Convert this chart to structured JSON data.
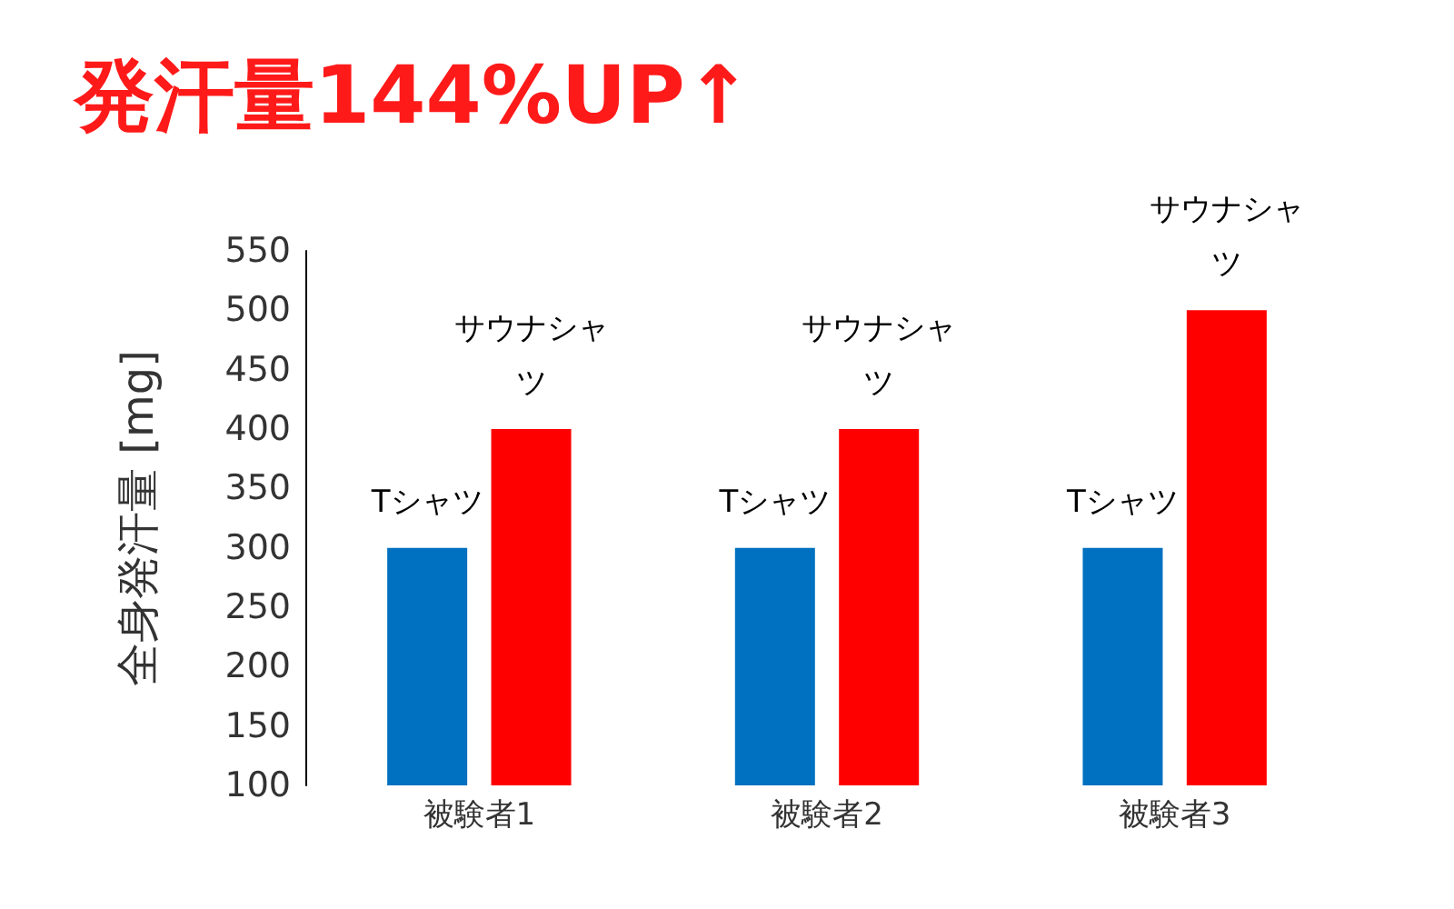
{
  "chart_data": {
    "type": "bar",
    "title": "発汗量144%UP↑",
    "ylabel": "全身発汗量 [mg]",
    "categories": [
      "被験者1",
      "被験者2",
      "被験者3"
    ],
    "series": [
      {
        "name": "Tシャツ",
        "color": "#0070c0",
        "values": [
          300,
          300,
          300
        ]
      },
      {
        "name": "サウナシャツ",
        "color": "#ff0000",
        "values": [
          400,
          400,
          500
        ]
      }
    ],
    "ylim": [
      100,
      550
    ],
    "yticks": [
      100,
      150,
      200,
      250,
      300,
      350,
      400,
      450,
      500,
      550
    ],
    "grid": false,
    "legend": false
  }
}
